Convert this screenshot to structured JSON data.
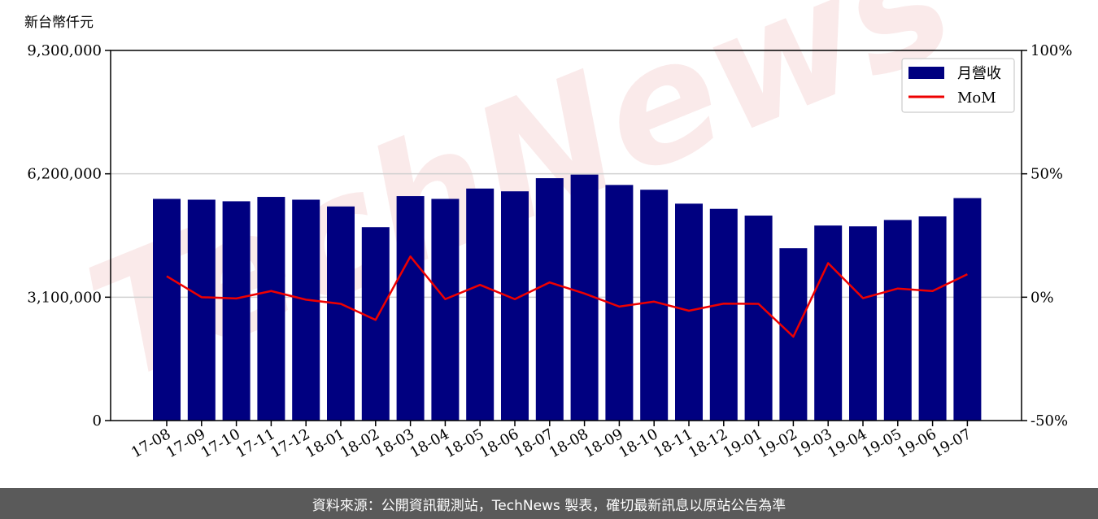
{
  "chart_data": {
    "type": "bar",
    "y_unit_label": "新台幣仟元",
    "categories": [
      "17-08",
      "17-09",
      "17-10",
      "17-11",
      "17-12",
      "18-01",
      "18-02",
      "18-03",
      "18-04",
      "18-05",
      "18-06",
      "18-07",
      "18-08",
      "18-09",
      "18-10",
      "18-11",
      "18-12",
      "19-01",
      "19-02",
      "19-03",
      "19-04",
      "19-05",
      "19-06",
      "19-07"
    ],
    "series": [
      {
        "name": "月營收",
        "type": "bar",
        "axis": "left",
        "color": "#000080",
        "values": [
          5570000,
          5550000,
          5510000,
          5620000,
          5550000,
          5380000,
          4860000,
          5640000,
          5570000,
          5830000,
          5760000,
          6090000,
          6180000,
          5920000,
          5800000,
          5450000,
          5320000,
          5150000,
          4330000,
          4900000,
          4880000,
          5040000,
          5130000,
          5590000
        ]
      },
      {
        "name": "MoM",
        "type": "line",
        "axis": "right",
        "color": "#ee0000",
        "values": [
          8.5,
          0.0,
          -0.5,
          2.5,
          -1.0,
          -2.7,
          -9.2,
          16.5,
          -0.8,
          5.0,
          -0.8,
          6.0,
          1.5,
          -3.8,
          -1.8,
          -5.5,
          -2.6,
          -2.7,
          -16.0,
          13.8,
          -0.4,
          3.5,
          2.5,
          9.3
        ]
      }
    ],
    "y_left": {
      "min": 0,
      "max": 9300000,
      "ticks": [
        0,
        3100000,
        6200000,
        9300000
      ],
      "tick_labels": [
        "0",
        "3,100,000",
        "6,200,000",
        "9,300,000"
      ]
    },
    "y_right": {
      "min": -50,
      "max": 100,
      "ticks": [
        -50,
        0,
        50,
        100
      ],
      "tick_labels": [
        "-50%",
        "0%",
        "50%",
        "100%"
      ]
    },
    "grid": "horizontal",
    "legend_position": "top-right",
    "watermark": "TechNews"
  },
  "footer": {
    "text": "資料來源：公開資訊觀測站，TechNews 製表，確切最新訊息以原站公告為準"
  }
}
